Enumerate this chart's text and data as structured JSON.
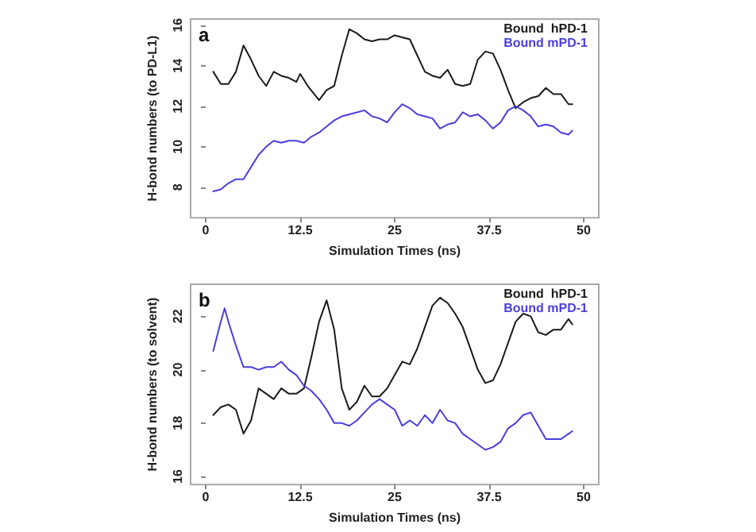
{
  "chart_data": [
    {
      "type": "line",
      "xlabel": "Simulation Times (ns)",
      "ylabel": "H-bond numbers (to PD-L1)",
      "annotations": [
        "a"
      ],
      "legend": "top right",
      "grid": false,
      "marker": "none",
      "line_style": "solid",
      "xlim": [
        -2,
        52
      ],
      "xticks": [
        0,
        12.5,
        25,
        37.5,
        50
      ],
      "ylim": [
        6.5,
        16.3
      ],
      "yticks": [
        8,
        10,
        12,
        14,
        16
      ],
      "series": [
        {
          "name": "Bound  hPD-1",
          "color": "#1a1a1a",
          "x": [
            1,
            2,
            3,
            4,
            5,
            6,
            7,
            8,
            9,
            10,
            11,
            12,
            12.5,
            13.5,
            15,
            16,
            17,
            18,
            19,
            20,
            21,
            22,
            23,
            24,
            25,
            26,
            27,
            28,
            29,
            30,
            31,
            32,
            33,
            34,
            35,
            36,
            37,
            38,
            39,
            40,
            41,
            42,
            43,
            44,
            45,
            46,
            47,
            48,
            48.5
          ],
          "values": [
            13.7,
            13.1,
            13.1,
            13.7,
            15.0,
            14.3,
            13.5,
            13.0,
            13.7,
            13.5,
            13.4,
            13.2,
            13.6,
            13.0,
            12.3,
            12.8,
            13.0,
            14.5,
            15.8,
            15.6,
            15.3,
            15.2,
            15.3,
            15.3,
            15.5,
            15.4,
            15.3,
            14.5,
            13.7,
            13.5,
            13.4,
            13.8,
            13.1,
            13.0,
            13.1,
            14.3,
            14.7,
            14.6,
            13.8,
            12.8,
            11.9,
            12.2,
            12.4,
            12.5,
            12.9,
            12.6,
            12.6,
            12.1,
            12.1
          ]
        },
        {
          "name": "Bound mPD-1",
          "color": "#4a3fdc",
          "x": [
            1,
            2,
            3,
            4,
            5,
            6,
            7,
            8,
            9,
            10,
            11,
            12,
            13,
            14,
            15,
            16,
            17,
            18,
            19,
            20,
            21,
            22,
            23,
            24,
            25,
            26,
            27,
            28,
            29,
            30,
            31,
            32,
            33,
            34,
            35,
            36,
            37,
            38,
            39,
            40,
            41,
            42,
            43,
            44,
            45,
            46,
            47,
            48,
            48.5
          ],
          "values": [
            7.8,
            7.9,
            8.2,
            8.4,
            8.4,
            9.0,
            9.6,
            10.0,
            10.3,
            10.2,
            10.3,
            10.3,
            10.2,
            10.5,
            10.7,
            11.0,
            11.3,
            11.5,
            11.6,
            11.7,
            11.8,
            11.5,
            11.4,
            11.2,
            11.7,
            12.1,
            11.9,
            11.6,
            11.5,
            11.4,
            10.9,
            11.1,
            11.2,
            11.7,
            11.5,
            11.6,
            11.3,
            10.9,
            11.2,
            11.8,
            12.0,
            11.8,
            11.5,
            11.0,
            11.1,
            11.0,
            10.7,
            10.6,
            10.8
          ]
        }
      ]
    },
    {
      "type": "line",
      "xlabel": "Simulation Times (ns)",
      "ylabel": "H-bond numbers (to solvent)",
      "annotations": [
        "b"
      ],
      "legend": "top right",
      "grid": false,
      "marker": "none",
      "line_style": "solid",
      "xlim": [
        -2,
        52
      ],
      "xticks": [
        0,
        12.5,
        25,
        37.5,
        50
      ],
      "ylim": [
        15.7,
        23.2
      ],
      "yticks": [
        16,
        18,
        20,
        22
      ],
      "series": [
        {
          "name": "Bound  hPD-1",
          "color": "#1a1a1a",
          "x": [
            1,
            2,
            3,
            4,
            5,
            6,
            7,
            8,
            9,
            10,
            11,
            12,
            13,
            14,
            15,
            16,
            17,
            18,
            19,
            20,
            21,
            22,
            23,
            24,
            25,
            26,
            27,
            28,
            29,
            30,
            31,
            32,
            33,
            34,
            35,
            36,
            37,
            38,
            39,
            40,
            41,
            42,
            43,
            44,
            45,
            46,
            47,
            48,
            48.5
          ],
          "values": [
            18.3,
            18.6,
            18.7,
            18.5,
            17.6,
            18.1,
            19.3,
            19.1,
            18.9,
            19.3,
            19.1,
            19.1,
            19.3,
            20.5,
            21.8,
            22.6,
            21.5,
            19.3,
            18.5,
            18.8,
            19.4,
            19.0,
            19.0,
            19.3,
            19.8,
            20.3,
            20.2,
            20.8,
            21.6,
            22.4,
            22.7,
            22.5,
            22.1,
            21.6,
            20.8,
            20.0,
            19.5,
            19.6,
            20.2,
            21.0,
            21.8,
            22.1,
            22.0,
            21.4,
            21.3,
            21.5,
            21.5,
            21.9,
            21.7
          ]
        },
        {
          "name": "Bound mPD-1",
          "color": "#4a3fdc",
          "x": [
            1,
            2,
            2.5,
            3,
            4,
            5,
            6,
            7,
            8,
            9,
            10,
            11,
            12,
            13,
            14,
            15,
            16,
            17,
            18,
            19,
            20,
            21,
            22,
            23,
            24,
            25,
            26,
            27,
            28,
            29,
            30,
            31,
            32,
            33,
            34,
            35,
            36,
            37,
            38,
            39,
            40,
            41,
            42,
            43,
            44,
            45,
            46,
            47,
            48,
            48.5
          ],
          "values": [
            20.7,
            21.8,
            22.3,
            21.8,
            20.9,
            20.1,
            20.1,
            20.0,
            20.1,
            20.1,
            20.3,
            20.0,
            19.8,
            19.4,
            19.2,
            18.9,
            18.5,
            18.0,
            18.0,
            17.9,
            18.1,
            18.4,
            18.7,
            18.9,
            18.7,
            18.5,
            17.9,
            18.1,
            17.9,
            18.3,
            18.0,
            18.5,
            18.1,
            18.0,
            17.6,
            17.4,
            17.2,
            17.0,
            17.1,
            17.3,
            17.8,
            18.0,
            18.3,
            18.4,
            17.9,
            17.4,
            17.4,
            17.4,
            17.6,
            17.7
          ]
        }
      ]
    }
  ]
}
